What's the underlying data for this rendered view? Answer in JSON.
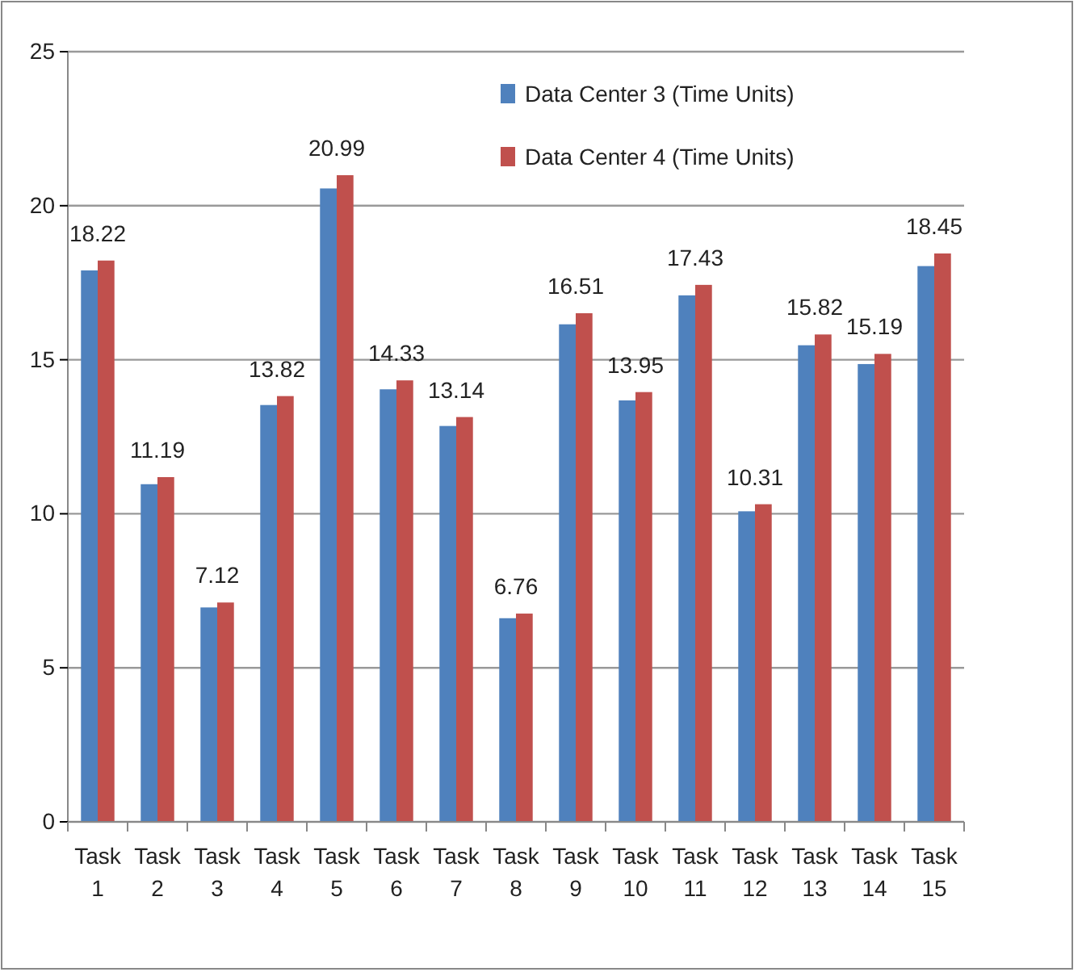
{
  "chart_data": {
    "type": "bar",
    "categories": [
      "Task 1",
      "Task 2",
      "Task 3",
      "Task 4",
      "Task 5",
      "Task 6",
      "Task 7",
      "Task 8",
      "Task 9",
      "Task 10",
      "Task 11",
      "Task 12",
      "Task 13",
      "Task 14",
      "Task 15"
    ],
    "series": [
      {
        "name": "Data Center 3 (Time Units)",
        "color": "#4f81bd",
        "values": [
          17.9,
          10.96,
          6.96,
          13.53,
          20.56,
          14.04,
          12.85,
          6.61,
          16.15,
          13.68,
          17.09,
          10.08,
          15.47,
          14.86,
          18.04
        ]
      },
      {
        "name": "Data Center 4 (Time Units)",
        "color": "#c0504d",
        "values": [
          18.22,
          11.19,
          7.12,
          13.82,
          20.99,
          14.33,
          13.14,
          6.76,
          16.51,
          13.95,
          17.43,
          10.31,
          15.82,
          15.19,
          18.45
        ],
        "value_labels": [
          "18.22",
          "11.19",
          "7.12",
          "13.82",
          "20.99",
          "14.33",
          "13.14",
          "6.76",
          "16.51",
          "13.95",
          "17.43",
          "10.31",
          "15.82",
          "15.19",
          "18.45"
        ]
      }
    ],
    "ylim": [
      0,
      25
    ],
    "yticks": [
      0,
      5,
      10,
      15,
      20,
      25
    ],
    "grid": "y",
    "legend": "top right"
  }
}
